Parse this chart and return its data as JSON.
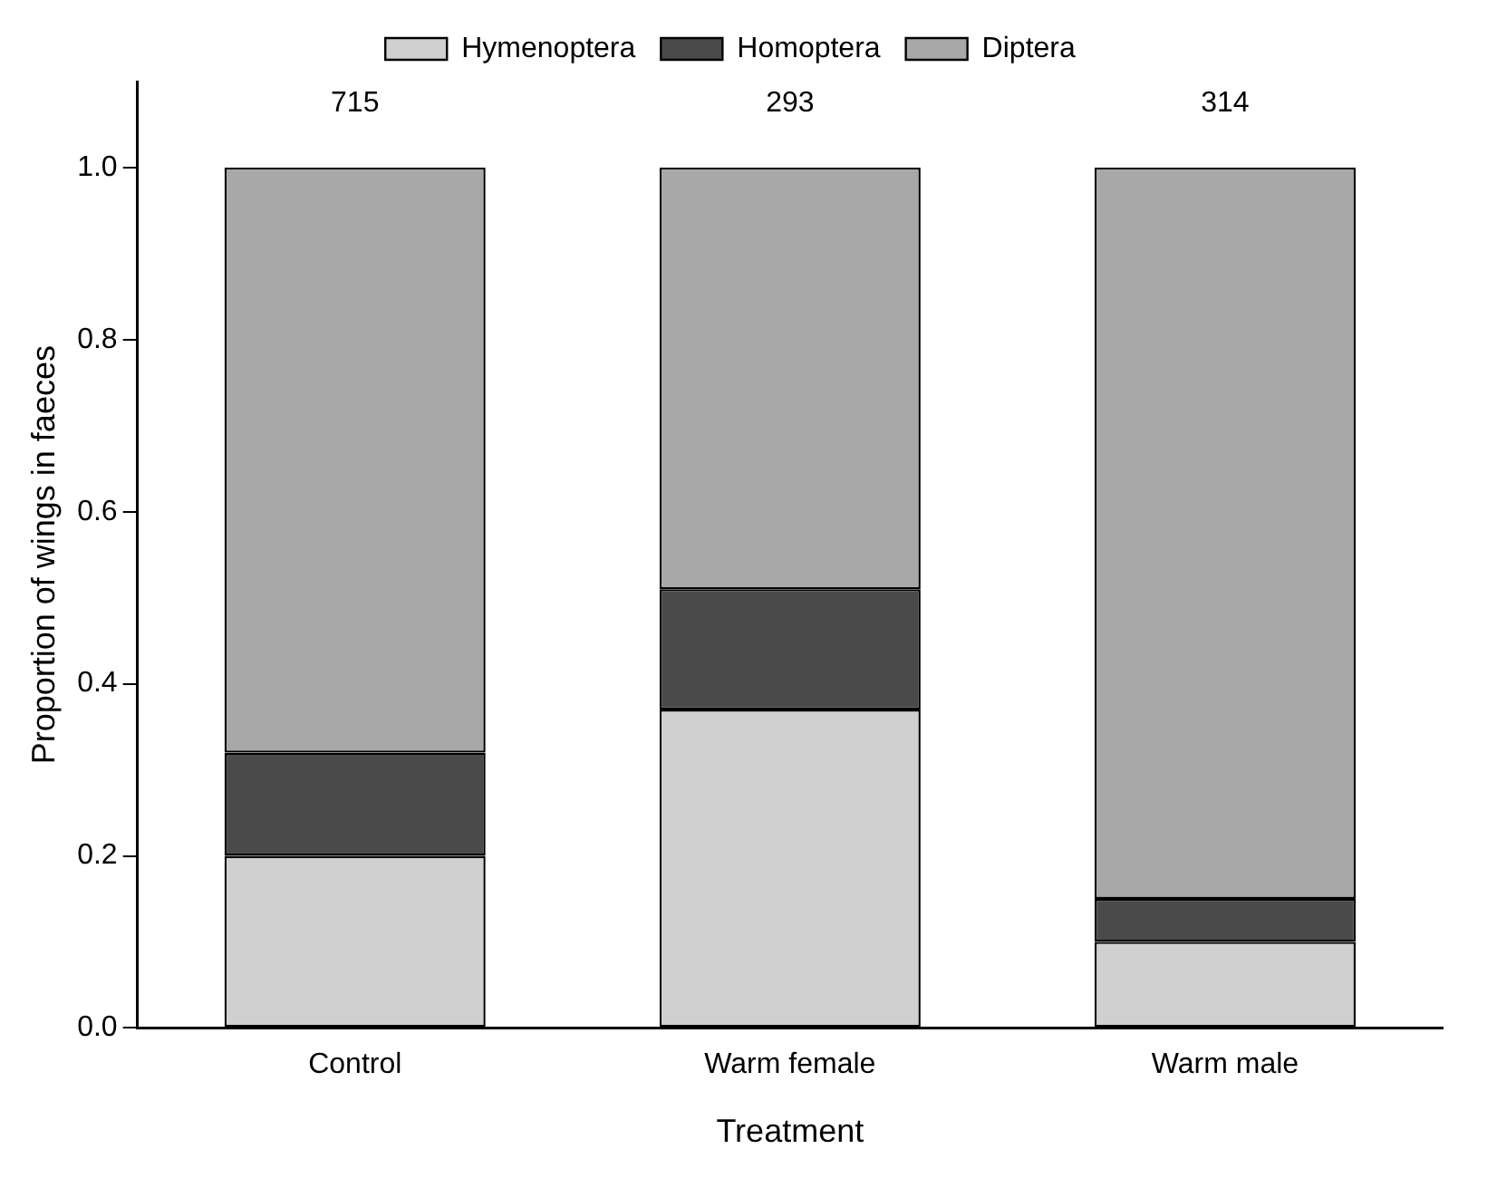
{
  "chart_data": {
    "type": "bar",
    "stacked": true,
    "xlabel": "Treatment",
    "ylabel": "Proportion of wings in faeces",
    "categories": [
      "Control",
      "Warm female",
      "Warm male"
    ],
    "series": [
      {
        "name": "Hymenoptera",
        "color": "#d0d0d0",
        "values": [
          0.2,
          0.37,
          0.1
        ]
      },
      {
        "name": "Homoptera",
        "color": "#4a4a4a",
        "values": [
          0.12,
          0.14,
          0.05
        ]
      },
      {
        "name": "Diptera",
        "color": "#a8a8a8",
        "values": [
          0.68,
          0.49,
          0.85
        ]
      }
    ],
    "annotations": [
      "715",
      "293",
      "314"
    ],
    "ylim": [
      0,
      1.1
    ],
    "yticks": [
      {
        "value": 0,
        "label": "0.0"
      },
      {
        "value": 0.2,
        "label": "0.2"
      },
      {
        "value": 0.4,
        "label": "0.4"
      },
      {
        "value": 0.6,
        "label": "0.6"
      },
      {
        "value": 0.8,
        "label": "0.8"
      },
      {
        "value": 1,
        "label": "1.0"
      }
    ],
    "grid": false,
    "legend": "top"
  }
}
